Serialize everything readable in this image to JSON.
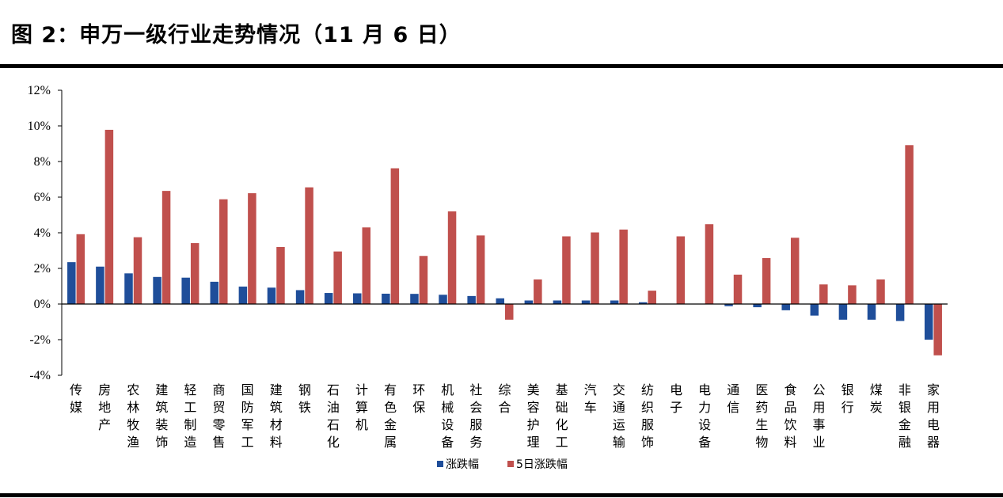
{
  "title": "图 2：申万一级行业走势情况（11 月 6 日）",
  "colors": {
    "series1": "#1F4E9A",
    "series2": "#C0504D",
    "axis": "#000000",
    "rule": "#000000"
  },
  "chart_data": {
    "type": "bar",
    "title": "",
    "xlabel": "",
    "ylabel": "",
    "ylim": [
      -4,
      12
    ],
    "yticks": [
      -4,
      -2,
      0,
      2,
      4,
      6,
      8,
      10,
      12
    ],
    "ytick_labels": [
      "-4%",
      "-2%",
      "0%",
      "2%",
      "4%",
      "6%",
      "8%",
      "10%",
      "12%"
    ],
    "grid": false,
    "legend_position": "bottom-center",
    "categories": [
      "传媒",
      "房地产",
      "农林牧渔",
      "建筑装饰",
      "轻工制造",
      "商贸零售",
      "国防军工",
      "建筑材料",
      "钢铁",
      "石油石化",
      "计算机",
      "有色金属",
      "环保",
      "机械设备",
      "社会服务",
      "综合",
      "美容护理",
      "基础化工",
      "汽车",
      "交通运输",
      "纺织服饰",
      "电子",
      "电力设备",
      "通信",
      "医药生物",
      "食品饮料",
      "公用事业",
      "银行",
      "煤炭",
      "非银金融",
      "家用电器"
    ],
    "series": [
      {
        "name": "涨跌幅",
        "values": [
          2.35,
          2.1,
          1.72,
          1.52,
          1.48,
          1.25,
          0.98,
          0.92,
          0.78,
          0.62,
          0.6,
          0.58,
          0.57,
          0.52,
          0.45,
          0.32,
          0.2,
          0.2,
          0.2,
          0.2,
          0.1,
          0.02,
          0.02,
          -0.12,
          -0.18,
          -0.35,
          -0.65,
          -0.88,
          -0.88,
          -0.95,
          -2.0
        ]
      },
      {
        "name": "5日涨跌幅",
        "values": [
          3.92,
          9.78,
          3.75,
          6.35,
          3.42,
          5.88,
          6.22,
          3.2,
          6.55,
          2.95,
          4.3,
          7.62,
          2.7,
          5.2,
          3.85,
          -0.88,
          1.38,
          3.8,
          4.02,
          4.18,
          0.75,
          3.8,
          4.48,
          1.65,
          2.58,
          3.72,
          1.1,
          1.05,
          1.38,
          8.92,
          -2.88
        ]
      }
    ]
  }
}
